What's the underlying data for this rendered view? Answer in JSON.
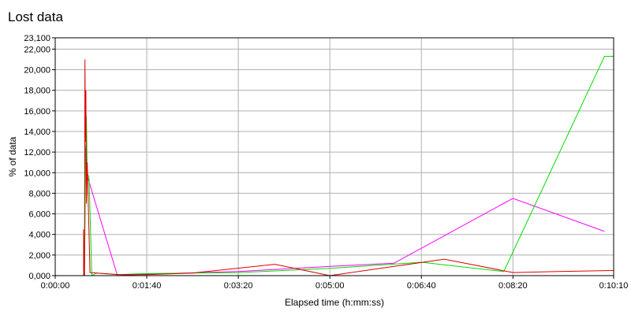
{
  "chart_data": {
    "type": "line",
    "title": "Lost data",
    "xlabel": "Elapsed time (h:mm:ss)",
    "ylabel": "% of data",
    "xlim": [
      0,
      610
    ],
    "ylim": [
      0,
      23100
    ],
    "x_ticks": [
      {
        "value": 0,
        "label": "0:00:00"
      },
      {
        "value": 100,
        "label": "0:01:40"
      },
      {
        "value": 200,
        "label": "0:03:20"
      },
      {
        "value": 300,
        "label": "0:05:00"
      },
      {
        "value": 400,
        "label": "0:06:40"
      },
      {
        "value": 500,
        "label": "0:08:20"
      },
      {
        "value": 610,
        "label": "0:10:10"
      }
    ],
    "y_ticks": [
      {
        "value": 0,
        "label": "0,000"
      },
      {
        "value": 2000,
        "label": "2,000"
      },
      {
        "value": 4000,
        "label": "4,000"
      },
      {
        "value": 6000,
        "label": "6,000"
      },
      {
        "value": 8000,
        "label": "8,000"
      },
      {
        "value": 10000,
        "label": "10,000"
      },
      {
        "value": 12000,
        "label": "12,000"
      },
      {
        "value": 14000,
        "label": "14,000"
      },
      {
        "value": 16000,
        "label": "16,000"
      },
      {
        "value": 18000,
        "label": "18,000"
      },
      {
        "value": 20000,
        "label": "20,000"
      },
      {
        "value": 22000,
        "label": "22,000"
      },
      {
        "value": 23100,
        "label": "23,100"
      }
    ],
    "grid": true,
    "legend": "none",
    "series": [
      {
        "color": "#ff00ff",
        "points": [
          [
            32,
            0
          ],
          [
            33,
            12000
          ],
          [
            34,
            13500
          ],
          [
            34.5,
            10000
          ],
          [
            35,
            9700
          ],
          [
            68,
            0
          ],
          [
            100,
            150
          ],
          [
            200,
            400
          ],
          [
            300,
            900
          ],
          [
            370,
            1200
          ],
          [
            500,
            7500
          ],
          [
            600,
            4300
          ]
        ]
      },
      {
        "color": "#00dd00",
        "points": [
          [
            32,
            0
          ],
          [
            33,
            9500
          ],
          [
            34,
            15500
          ],
          [
            35,
            10000
          ],
          [
            37,
            9500
          ],
          [
            40,
            0
          ],
          [
            45,
            250
          ],
          [
            67,
            100
          ],
          [
            100,
            200
          ],
          [
            200,
            300
          ],
          [
            300,
            700
          ],
          [
            400,
            1300
          ],
          [
            490,
            400
          ],
          [
            600,
            21300
          ],
          [
            610,
            21300
          ]
        ]
      },
      {
        "color": "#dd0000",
        "points": [
          [
            31,
            0
          ],
          [
            31,
            4500
          ],
          [
            31.5,
            0
          ],
          [
            32,
            0
          ],
          [
            32.5,
            21000
          ],
          [
            33,
            13000
          ],
          [
            33.5,
            18000
          ],
          [
            34,
            7000
          ],
          [
            35,
            11000
          ],
          [
            38,
            300
          ],
          [
            70,
            100
          ],
          [
            100,
            100
          ],
          [
            150,
            250
          ],
          [
            240,
            1100
          ],
          [
            300,
            0
          ],
          [
            425,
            1600
          ],
          [
            500,
            300
          ],
          [
            550,
            400
          ],
          [
            610,
            500
          ]
        ]
      }
    ]
  }
}
